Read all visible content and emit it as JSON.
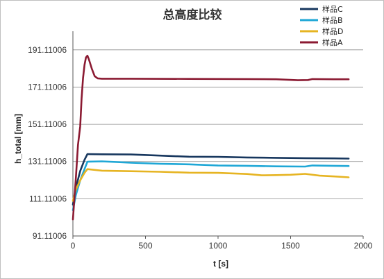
{
  "chart_data": {
    "type": "line",
    "title": "总高度比较",
    "xlabel": "t [s]",
    "ylabel": "h_total [mm]",
    "xlim": [
      0,
      2000
    ],
    "ylim": [
      91.11006,
      201.11006
    ],
    "xticks": [
      "0",
      "500",
      "1000",
      "1500",
      "2000"
    ],
    "yticks": [
      "91.11006",
      "111.11006",
      "131.11006",
      "151.11006",
      "171.11006",
      "191.11006"
    ],
    "grid": "horizontal",
    "legend": "top-right",
    "series": [
      {
        "name": "样品C",
        "color": "#17375e",
        "points": [
          [
            0,
            108
          ],
          [
            20,
            117
          ],
          [
            50,
            126
          ],
          [
            80,
            132
          ],
          [
            100,
            135.1
          ],
          [
            200,
            135.0
          ],
          [
            400,
            134.9
          ],
          [
            600,
            134.3
          ],
          [
            800,
            133.7
          ],
          [
            1000,
            133.6
          ],
          [
            1200,
            133.3
          ],
          [
            1400,
            133.1
          ],
          [
            1600,
            132.9
          ],
          [
            1800,
            132.8
          ],
          [
            1900,
            132.7
          ]
        ]
      },
      {
        "name": "样品B",
        "color": "#1fa7d6",
        "points": [
          [
            0,
            105
          ],
          [
            20,
            113
          ],
          [
            50,
            121
          ],
          [
            80,
            127
          ],
          [
            100,
            131.0
          ],
          [
            200,
            131.2
          ],
          [
            400,
            130.5
          ],
          [
            600,
            129.9
          ],
          [
            800,
            129.6
          ],
          [
            1000,
            129.0
          ],
          [
            1200,
            128.8
          ],
          [
            1400,
            128.5
          ],
          [
            1600,
            128.4
          ],
          [
            1650,
            129.0
          ],
          [
            1800,
            128.8
          ],
          [
            1900,
            128.7
          ]
        ]
      },
      {
        "name": "样品D",
        "color": "#e6b422",
        "points": [
          [
            0,
            110
          ],
          [
            20,
            116
          ],
          [
            50,
            121
          ],
          [
            80,
            125
          ],
          [
            100,
            127.0
          ],
          [
            200,
            126.2
          ],
          [
            400,
            125.9
          ],
          [
            600,
            125.6
          ],
          [
            800,
            125.1
          ],
          [
            1000,
            125.0
          ],
          [
            1200,
            124.4
          ],
          [
            1300,
            123.7
          ],
          [
            1400,
            123.8
          ],
          [
            1500,
            124.0
          ],
          [
            1600,
            124.5
          ],
          [
            1700,
            123.5
          ],
          [
            1800,
            123.1
          ],
          [
            1900,
            122.6
          ]
        ]
      },
      {
        "name": "样品A",
        "color": "#8b1a32",
        "points": [
          [
            0,
            100
          ],
          [
            20,
            122
          ],
          [
            35,
            140
          ],
          [
            50,
            150
          ],
          [
            60,
            165
          ],
          [
            70,
            176
          ],
          [
            80,
            183
          ],
          [
            90,
            187
          ],
          [
            100,
            188
          ],
          [
            110,
            186
          ],
          [
            130,
            181
          ],
          [
            150,
            177
          ],
          [
            170,
            175.8
          ],
          [
            200,
            175.6
          ],
          [
            400,
            175.6
          ],
          [
            800,
            175.5
          ],
          [
            1200,
            175.4
          ],
          [
            1400,
            175.3
          ],
          [
            1550,
            174.8
          ],
          [
            1620,
            174.9
          ],
          [
            1650,
            175.4
          ],
          [
            1800,
            175.3
          ],
          [
            1900,
            175.3
          ]
        ]
      }
    ]
  }
}
